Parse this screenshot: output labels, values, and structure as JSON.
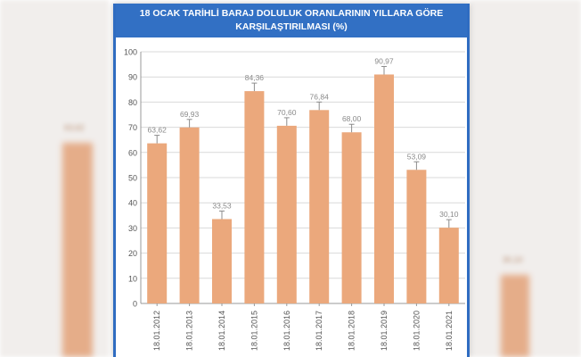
{
  "page": {
    "title_line1": "18 OCAK TARİHLİ BARAJ DOLULUK ORANLARININ YILLARA GÖRE",
    "title_line2": "KARŞILAŞTIRILMASI (%)"
  },
  "backdrop": {
    "left_label": "63,62",
    "right_label": "30,10",
    "bar_color": "#e4a77f"
  },
  "colors": {
    "header": "#3270c4",
    "bar": "#eba87c",
    "grid": "#d9d9d9",
    "text": "#555555"
  },
  "chart_data": {
    "type": "bar",
    "title": "18 OCAK TARİHLİ BARAJ DOLULUK ORANLARININ YILLARA GÖRE KARŞILAŞTIRILMASI (%)",
    "categories": [
      "18.01.2012",
      "18.01.2013",
      "18.01.2014",
      "18.01.2015",
      "18.01.2016",
      "18.01.2017",
      "18.01.2018",
      "18.01.2019",
      "18.01.2020",
      "18.01.2021"
    ],
    "values": [
      63.62,
      69.93,
      33.53,
      84.36,
      70.6,
      76.84,
      68.0,
      90.97,
      53.09,
      30.1
    ],
    "data_labels": [
      "63,62",
      "69,93",
      "33,53",
      "84,36",
      "70,60",
      "76,84",
      "68,00",
      "90,97",
      "53,09",
      "30,10"
    ],
    "yticks": [
      0,
      10,
      20,
      30,
      40,
      50,
      60,
      70,
      80,
      90,
      100
    ],
    "ylim": [
      0,
      100
    ],
    "grid": true,
    "legend": "none"
  }
}
